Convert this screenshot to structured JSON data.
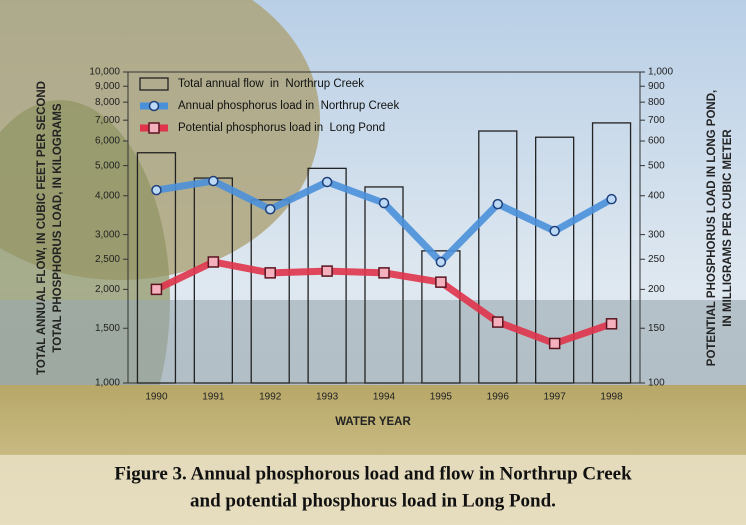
{
  "chart_data": {
    "type": "bar",
    "categories": [
      "1990",
      "1991",
      "1992",
      "1993",
      "1994",
      "1995",
      "1996",
      "1997",
      "1998"
    ],
    "series": [
      {
        "name": "Total annual flow  in  Northrup Creek",
        "type": "bar",
        "color": "#222222",
        "axis": "y",
        "values": [
          5500,
          4560,
          3880,
          4900,
          4270,
          2660,
          6460,
          6170,
          6860
        ]
      },
      {
        "name": "Annual phosphorus load in  Northrup Creek",
        "type": "line",
        "color": "#4a90d9",
        "axis": "y",
        "values": [
          4170,
          4460,
          3620,
          4430,
          3790,
          2450,
          3760,
          3080,
          3900
        ]
      },
      {
        "name": "Potential phosphorus load in  Long Pond",
        "type": "line",
        "color": "#e0344a",
        "axis": "y2",
        "values": [
          200,
          245,
          226,
          229,
          226,
          211,
          157,
          134,
          155
        ]
      }
    ],
    "xlabel": "WATER YEAR",
    "ylabel": [
      "TOTAL ANNUAL FLOW, IN CUBIC FEET PER SECOND",
      "TOTAL PHOSPHORUS LOAD, IN KILOGRAMS"
    ],
    "y2label": [
      "POTENTIAL PHOSPHORUS LOAD IN LONG POND,",
      "IN MILLIGRAMS PER CUBIC METER"
    ],
    "ylim": [
      1000,
      10000
    ],
    "ylog": true,
    "yticks": [
      {
        "value": 1000,
        "label": "1,000"
      },
      {
        "value": 1500,
        "label": "1,500"
      },
      {
        "value": 2000,
        "label": "2,000"
      },
      {
        "value": 2500,
        "label": "2,500"
      },
      {
        "value": 3000,
        "label": "3,000"
      },
      {
        "value": 4000,
        "label": "4,000"
      },
      {
        "value": 5000,
        "label": "5,000"
      },
      {
        "value": 6000,
        "label": "6,000"
      },
      {
        "value": 7000,
        "label": "7,000"
      },
      {
        "value": 8000,
        "label": "8,000"
      },
      {
        "value": 9000,
        "label": "9,000"
      },
      {
        "value": 10000,
        "label": "10,000"
      }
    ],
    "y2lim": [
      100,
      1000
    ],
    "y2log": true,
    "y2ticks": [
      100,
      150,
      200,
      250,
      300,
      400,
      500,
      600,
      700,
      800,
      900,
      {
        "value": 1000,
        "label": "1,000"
      }
    ],
    "legend": "upper left",
    "caption": [
      "Figure 3.  Annual phosphorous load and flow in Northrup Creek",
      "and  potential phosphorus load  in Long Pond."
    ]
  }
}
